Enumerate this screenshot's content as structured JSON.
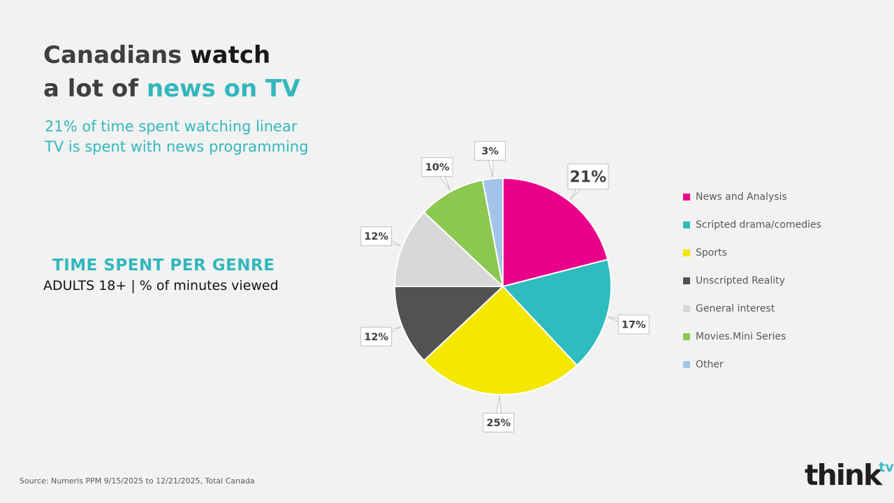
{
  "slide": {
    "title": {
      "part1": "Canadians ",
      "part2": "watch",
      "part3": "a lot of ",
      "part4": "news on TV"
    },
    "subtitle_line1": "21% of time spent watching linear",
    "subtitle_line2": "TV is spent with news programming",
    "section_heading": "TIME SPENT PER GENRE",
    "section_subheading": "ADULTS 18+ | % of minutes viewed",
    "source": "Source: Numeris PPM  9/15/2025 to 12/21/2025, Total Canada",
    "logo": {
      "text": "think",
      "sup": "tv"
    }
  },
  "colors": {
    "background": "#f2f2f2",
    "accent_teal": "#33b7bd",
    "title_gray": "#3f3f3f",
    "title_black": "#1a1a1a",
    "callout_border": "#bfbfbf",
    "callout_text": "#404040",
    "legend_text": "#595959"
  },
  "chart_data": {
    "type": "pie",
    "title": "TIME SPENT PER GENRE",
    "subtitle": "ADULTS 18+ | % of minutes viewed",
    "start_angle_deg": 0,
    "direction": "clockwise",
    "legend_position": "right",
    "grid": false,
    "slices": [
      {
        "label": "News and Analysis",
        "value": 21,
        "data_label": "21%",
        "color": "#eb008b",
        "highlight": true
      },
      {
        "label": "Scripted drama/comedies",
        "value": 17,
        "data_label": "17%",
        "color": "#2ebcbe",
        "highlight": false
      },
      {
        "label": "Sports",
        "value": 25,
        "data_label": "25%",
        "color": "#f5e800",
        "highlight": false
      },
      {
        "label": "Unscripted Reality",
        "value": 12,
        "data_label": "12%",
        "color": "#525252",
        "highlight": false
      },
      {
        "label": "General interest",
        "value": 12,
        "data_label": "12%",
        "color": "#d8d8d8",
        "highlight": false
      },
      {
        "label": "Movies.Mini Series",
        "value": 10,
        "data_label": "10%",
        "color": "#8cc850",
        "highlight": false
      },
      {
        "label": "Other",
        "value": 3,
        "data_label": "3%",
        "color": "#a3c4e8",
        "highlight": false
      }
    ]
  }
}
